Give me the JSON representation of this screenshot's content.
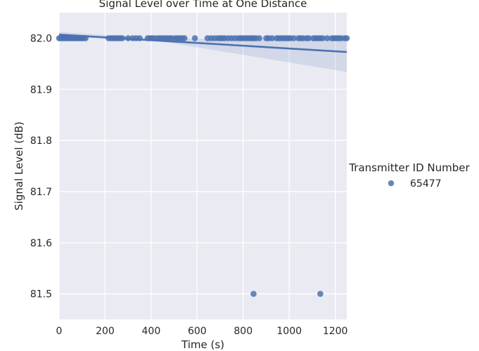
{
  "chart_data": {
    "type": "scatter",
    "title": "Signal Level over Time at One Distance",
    "xlabel": "Time (s)",
    "ylabel": "Signal Level (dB)",
    "xlim": [
      0,
      1250
    ],
    "ylim": [
      81.45,
      82.05
    ],
    "xticks": [
      "0",
      "200",
      "400",
      "600",
      "800",
      "1000",
      "1200"
    ],
    "xtick_values": [
      0,
      200,
      400,
      600,
      800,
      1000,
      1200
    ],
    "yticks": [
      "81.5",
      "81.6",
      "81.7",
      "81.8",
      "81.9",
      "82.0"
    ],
    "ytick_values": [
      81.5,
      81.6,
      81.7,
      81.8,
      81.9,
      82.0
    ],
    "grid": true,
    "legend": {
      "title": "Transmitter ID Number",
      "placement": "right",
      "entries": [
        "65477"
      ]
    },
    "series": [
      {
        "name": "65477",
        "color": "#4c72b0",
        "x": [
          0,
          8,
          15,
          22,
          30,
          38,
          45,
          52,
          60,
          68,
          75,
          82,
          90,
          98,
          105,
          115,
          215,
          225,
          235,
          245,
          255,
          265,
          275,
          300,
          320,
          335,
          350,
          385,
          395,
          405,
          415,
          430,
          440,
          450,
          460,
          470,
          480,
          490,
          505,
          515,
          525,
          535,
          545,
          590,
          645,
          660,
          675,
          690,
          700,
          710,
          720,
          735,
          750,
          765,
          780,
          790,
          800,
          810,
          820,
          830,
          840,
          845,
          855,
          870,
          900,
          910,
          925,
          945,
          955,
          965,
          975,
          985,
          995,
          1005,
          1020,
          1040,
          1050,
          1060,
          1075,
          1085,
          1105,
          1115,
          1125,
          1135,
          1145,
          1165,
          1185,
          1195,
          1205,
          1215,
          1225,
          1240,
          1250,
          845,
          1135
        ],
        "y": [
          82.0,
          82.0,
          82.0,
          82.0,
          82.0,
          82.0,
          82.0,
          82.0,
          82.0,
          82.0,
          82.0,
          82.0,
          82.0,
          82.0,
          82.0,
          82.0,
          82.0,
          82.0,
          82.0,
          82.0,
          82.0,
          82.0,
          82.0,
          82.0,
          82.0,
          82.0,
          82.0,
          82.0,
          82.0,
          82.0,
          82.0,
          82.0,
          82.0,
          82.0,
          82.0,
          82.0,
          82.0,
          82.0,
          82.0,
          82.0,
          82.0,
          82.0,
          82.0,
          82.0,
          82.0,
          82.0,
          82.0,
          82.0,
          82.0,
          82.0,
          82.0,
          82.0,
          82.0,
          82.0,
          82.0,
          82.0,
          82.0,
          82.0,
          82.0,
          82.0,
          82.0,
          82.0,
          82.0,
          82.0,
          82.0,
          82.0,
          82.0,
          82.0,
          82.0,
          82.0,
          82.0,
          82.0,
          82.0,
          82.0,
          82.0,
          82.0,
          82.0,
          82.0,
          82.0,
          82.0,
          82.0,
          82.0,
          82.0,
          82.0,
          82.0,
          82.0,
          82.0,
          82.0,
          82.0,
          82.0,
          82.0,
          82.0,
          82.0,
          81.5,
          81.5
        ]
      }
    ],
    "regression": {
      "x": [
        0,
        1250
      ],
      "y": [
        82.007,
        81.973
      ],
      "ci_upper": [
        82.012,
        82.003
      ],
      "ci_lower": [
        82.0,
        81.934
      ],
      "ci_mid_x": 400,
      "ci_mid_upper": 82.0,
      "ci_mid_lower": 81.997
    }
  }
}
